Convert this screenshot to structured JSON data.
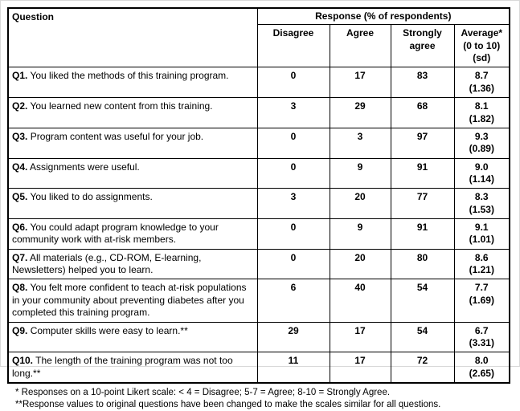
{
  "table": {
    "header": {
      "question": "Question",
      "response_group": "Response (% of respondents)",
      "disagree": "Disagree",
      "agree": "Agree",
      "strongly_agree": "Strongly agree",
      "average_line1": "Average*",
      "average_line2": "(0 to 10)",
      "average_line3": "(sd)"
    },
    "rows": [
      {
        "prefix": "Q1.",
        "text": "You liked the methods of this training program.",
        "disagree": "0",
        "agree": "17",
        "strongly_agree": "83",
        "average": "8.7",
        "sd": "(1.36)"
      },
      {
        "prefix": "Q2.",
        "text": "You learned new content from this training.",
        "disagree": "3",
        "agree": "29",
        "strongly_agree": "68",
        "average": "8.1",
        "sd": "(1.82)"
      },
      {
        "prefix": "Q3.",
        "text": "Program content was useful for your job.",
        "disagree": "0",
        "agree": "3",
        "strongly_agree": "97",
        "average": "9.3",
        "sd": "(0.89)"
      },
      {
        "prefix": "Q4.",
        "text": "Assignments were useful.",
        "disagree": "0",
        "agree": "9",
        "strongly_agree": "91",
        "average": "9.0",
        "sd": "(1.14)"
      },
      {
        "prefix": "Q5.",
        "text": "You liked to do assignments.",
        "disagree": "3",
        "agree": "20",
        "strongly_agree": "77",
        "average": "8.3",
        "sd": "(1.53)"
      },
      {
        "prefix": "Q6.",
        "text": "You could adapt program knowledge to your community work with at-risk members.",
        "disagree": "0",
        "agree": "9",
        "strongly_agree": "91",
        "average": "9.1",
        "sd": "(1.01)"
      },
      {
        "prefix": "Q7.",
        "text": "All materials (e.g., CD-ROM, E-learning, Newsletters) helped you to learn.",
        "disagree": "0",
        "agree": "20",
        "strongly_agree": "80",
        "average": "8.6",
        "sd": "(1.21)"
      },
      {
        "prefix": "Q8.",
        "text": "You felt more confident to teach at-risk populations in your community about preventing diabetes after you completed this training program.",
        "disagree": "6",
        "agree": "40",
        "strongly_agree": "54",
        "average": "7.7",
        "sd": "(1.69)"
      },
      {
        "prefix": "Q9.",
        "text": "Computer skills were easy to learn.**",
        "disagree": "29",
        "agree": "17",
        "strongly_agree": "54",
        "average": "6.7",
        "sd": "(3.31)"
      },
      {
        "prefix": "Q10.",
        "text": "The length of the training program was not too long.**",
        "disagree": "11",
        "agree": "17",
        "strongly_agree": "72",
        "average": "8.0",
        "sd": "(2.65)"
      }
    ]
  },
  "footnotes": {
    "line1": "* Responses on a 10-point Likert scale: < 4 = Disagree; 5-7 = Agree; 8-10 = Strongly Agree.",
    "line2": "**Response values to original questions have been changed to make the scales similar for all questions."
  }
}
